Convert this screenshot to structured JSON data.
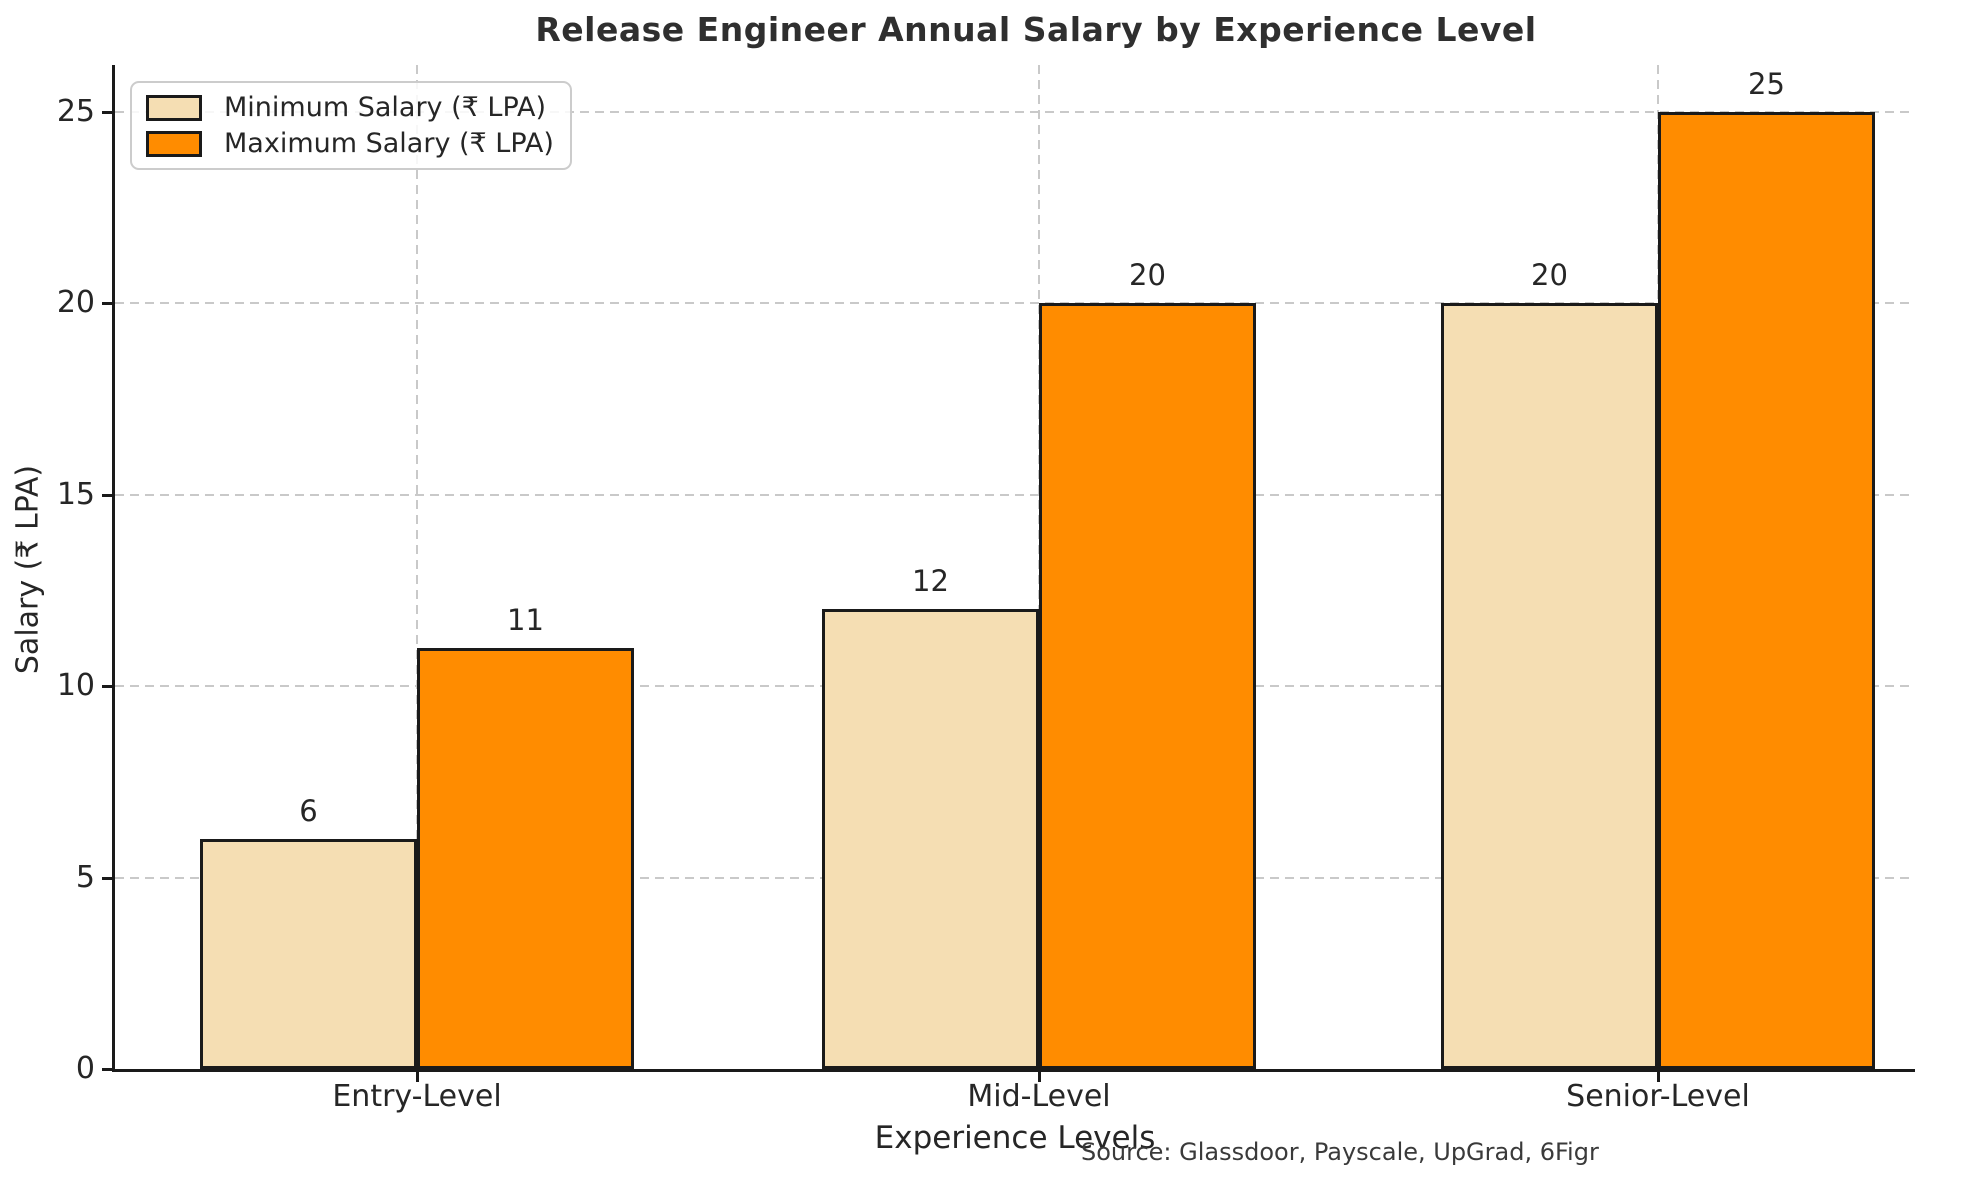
{
  "title": "Release Engineer Annual Salary by Experience Level",
  "source_note": "Source: Glassdoor, Payscale, UpGrad, 6Figr",
  "chart_data": {
    "type": "bar",
    "title": "Release Engineer Annual Salary by Experience Level",
    "categories": [
      "Entry-Level",
      "Mid-Level",
      "Senior-Level"
    ],
    "series": [
      {
        "name": "Minimum Salary (₹ LPA)",
        "color": "#F5DEB3",
        "values": [
          6,
          12,
          20
        ]
      },
      {
        "name": "Maximum Salary (₹ LPA)",
        "color": "#FF8C00",
        "values": [
          11,
          20,
          25
        ]
      }
    ],
    "xlabel": "Experience Levels",
    "ylabel": "Salary (₹ LPA)",
    "yticks": [
      0,
      5,
      10,
      15,
      20,
      25
    ],
    "ylim": [
      0,
      26.2
    ],
    "grid": "dashed, both axes",
    "legend_position": "upper left",
    "bar_edge_color": "#1a1a1a",
    "value_labels": [
      [
        6,
        12,
        20
      ],
      [
        11,
        20,
        25
      ]
    ]
  },
  "colors": {
    "background": "#ffffff",
    "grid": "#c9c9c9",
    "text": "#262626",
    "min_bar": "#F5DEB3",
    "max_bar": "#FF8C00",
    "edge": "#1a1a1a"
  }
}
